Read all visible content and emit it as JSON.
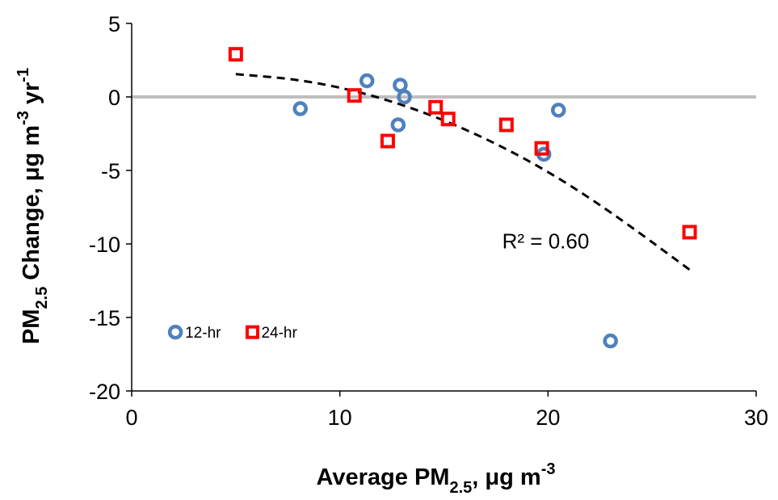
{
  "chart_data": {
    "type": "scatter",
    "xlabel": {
      "main": "Average PM",
      "sub": "2.5",
      "unit": ", μg m",
      "sup": "-3"
    },
    "ylabel": {
      "main": "PM",
      "sub": "2.5",
      "unit": " Change, μg m",
      "sup1": "-3",
      "unit2": " yr",
      "sup2": "-1"
    },
    "xlim": [
      0,
      30
    ],
    "ylim": [
      -20,
      5
    ],
    "xticks": [
      "0",
      "10",
      "20",
      "30"
    ],
    "xtick_values": [
      0,
      10,
      20,
      30
    ],
    "yticks": [
      "5",
      "0",
      "-5",
      "-10",
      "-15",
      "-20"
    ],
    "ytick_values": [
      5,
      0,
      -5,
      -10,
      -15,
      -20
    ],
    "zero_line": true,
    "legend_position": "bottom-left",
    "series": [
      {
        "name": "12-hr",
        "marker": "circle",
        "color": "#4f81bd",
        "x": [
          8.1,
          11.3,
          12.8,
          12.9,
          13.1,
          20.5,
          19.8,
          23.0
        ],
        "y": [
          -0.8,
          1.1,
          -1.9,
          0.8,
          0.0,
          -0.9,
          -3.9,
          -16.6
        ]
      },
      {
        "name": "24-hr",
        "marker": "square",
        "color": "#ff0000",
        "x": [
          5.0,
          10.7,
          12.3,
          14.6,
          15.2,
          18.0,
          19.7,
          26.8
        ],
        "y": [
          2.9,
          0.1,
          -3.0,
          -0.7,
          -1.5,
          -1.9,
          -3.5,
          -9.2
        ]
      }
    ],
    "trendline": {
      "type": "polynomial",
      "style": "dashed",
      "color": "#000000",
      "x": [
        5.0,
        8.0,
        11.0,
        14.0,
        17.0,
        20.0,
        23.0,
        26.8
      ],
      "y": [
        1.55,
        1.2,
        0.35,
        -1.0,
        -2.8,
        -5.05,
        -7.8,
        -11.75
      ]
    },
    "annotations": [
      {
        "text": "R² = 0.60",
        "x": 17.8,
        "y": -9.8
      }
    ]
  }
}
